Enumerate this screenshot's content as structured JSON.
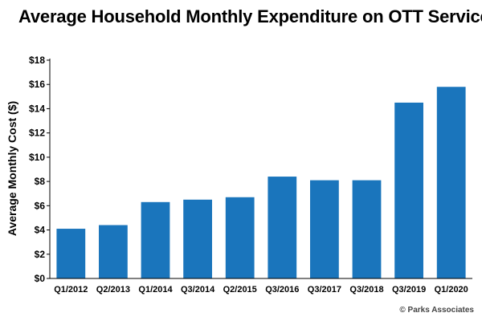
{
  "chart_data": {
    "type": "bar",
    "title": "Average Household Monthly Expenditure on OTT Services",
    "ylabel": "Average Monthly Cost ($)",
    "xlabel": "",
    "categories": [
      "Q1/2012",
      "Q2/2013",
      "Q1/2014",
      "Q3/2014",
      "Q2/2015",
      "Q3/2016",
      "Q3/2017",
      "Q3/2018",
      "Q3/2019",
      "Q1/2020"
    ],
    "values": [
      4.1,
      4.4,
      6.3,
      6.5,
      6.7,
      8.4,
      8.1,
      8.1,
      14.5,
      15.8
    ],
    "ylim": [
      0,
      18
    ],
    "yticks": [
      0,
      2,
      4,
      6,
      8,
      10,
      12,
      14,
      16,
      18
    ],
    "ytick_labels": [
      "$0",
      "$2",
      "$4",
      "$6",
      "$8",
      "$10",
      "$12",
      "$14",
      "$16",
      "$18"
    ],
    "grid": false,
    "legend": "none",
    "bar_color": "#1a75bc"
  },
  "credit": "© Parks Associates"
}
